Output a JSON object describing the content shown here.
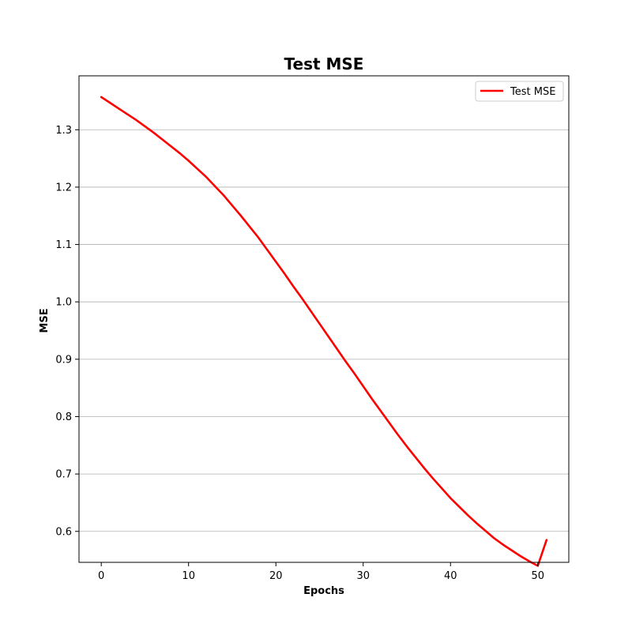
{
  "chart_data": {
    "type": "line",
    "title": "Test MSE",
    "xlabel": "Epochs",
    "ylabel": "MSE",
    "xlim": [
      -2.55,
      53.55
    ],
    "ylim": [
      0.546,
      1.394
    ],
    "x_ticks": [
      0,
      10,
      20,
      30,
      40,
      50
    ],
    "x_tick_labels": [
      "0",
      "10",
      "20",
      "30",
      "40",
      "50"
    ],
    "y_ticks": [
      0.6,
      0.7,
      0.8,
      0.9,
      1.0,
      1.1,
      1.2,
      1.3
    ],
    "y_tick_labels": [
      "0.6",
      "0.7",
      "0.8",
      "0.9",
      "1.0",
      "1.1",
      "1.2",
      "1.3"
    ],
    "grid": "y-major",
    "legend": {
      "position": "top-right",
      "entries": [
        "Test MSE"
      ]
    },
    "series": [
      {
        "name": "Test MSE",
        "color": "#ff0000",
        "x": [
          0,
          1,
          2,
          3,
          4,
          5,
          6,
          7,
          8,
          9,
          10,
          11,
          12,
          13,
          14,
          15,
          16,
          17,
          18,
          19,
          20,
          21,
          22,
          23,
          24,
          25,
          26,
          27,
          28,
          29,
          30,
          31,
          32,
          33,
          34,
          35,
          36,
          37,
          38,
          39,
          40,
          41,
          42,
          43,
          44,
          45,
          46,
          47,
          48,
          49,
          50,
          51
        ],
        "y": [
          1.357,
          1.347,
          1.337,
          1.327,
          1.317,
          1.306,
          1.295,
          1.283,
          1.271,
          1.259,
          1.246,
          1.232,
          1.218,
          1.202,
          1.186,
          1.168,
          1.15,
          1.131,
          1.112,
          1.091,
          1.07,
          1.049,
          1.027,
          1.006,
          0.984,
          0.962,
          0.94,
          0.918,
          0.896,
          0.875,
          0.853,
          0.831,
          0.81,
          0.789,
          0.768,
          0.748,
          0.729,
          0.71,
          0.692,
          0.675,
          0.658,
          0.643,
          0.628,
          0.614,
          0.601,
          0.588,
          0.577,
          0.567,
          0.557,
          0.548,
          0.54,
          0.585
        ]
      }
    ]
  }
}
